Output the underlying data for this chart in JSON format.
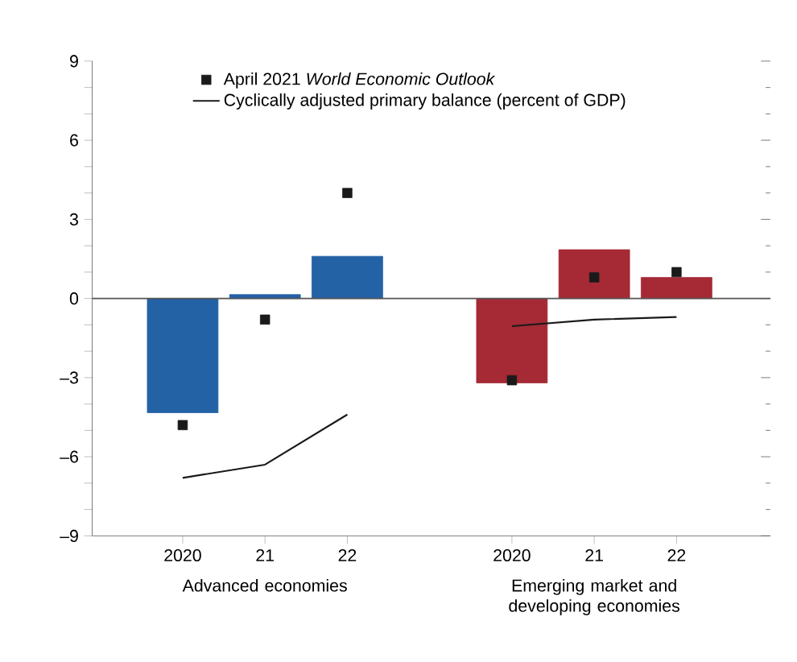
{
  "chart_data": {
    "type": "bar",
    "categories": [
      "2020",
      "21",
      "22",
      null,
      "2020",
      "21",
      "22"
    ],
    "series": [
      {
        "colors": [
          "#2462a6",
          "#2462a6",
          "#2462a6",
          "#ffffff",
          "#a52a35",
          "#a52a35",
          "#a52a35"
        ],
        "values": [
          -4.33,
          0.15,
          1.6,
          null,
          -3.2,
          1.85,
          0.8
        ]
      },
      {
        "type": "scatter",
        "name": "April 2021 *World Economic Outlook*",
        "color": "#1a1a1a",
        "marker": "square",
        "values": [
          -4.8,
          -0.8,
          4.0,
          null,
          -3.1,
          0.8,
          1.0
        ]
      },
      {
        "type": "line",
        "name": "Cyclically adjusted primary balance (percent of GDP)",
        "color": "#1a1a1a",
        "values": [
          -6.8,
          -6.3,
          -4.4,
          null,
          -1.05,
          -0.8,
          -0.7
        ]
      }
    ],
    "ylim": [
      -9,
      9
    ],
    "yticks": [
      {
        "value": -9,
        "label": "–9"
      },
      {
        "value": -8,
        "label": null
      },
      {
        "value": -7,
        "label": null
      },
      {
        "value": -6,
        "label": "–6"
      },
      {
        "value": -5,
        "label": null
      },
      {
        "value": -4,
        "label": null
      },
      {
        "value": -3,
        "label": "–3"
      },
      {
        "value": -2,
        "label": null
      },
      {
        "value": -1,
        "label": null
      },
      0,
      {
        "value": 1,
        "label": null
      },
      {
        "value": 2,
        "label": null
      },
      3,
      {
        "value": 4,
        "label": null
      },
      {
        "value": 5,
        "label": null
      },
      6,
      {
        "value": 7,
        "label": null
      },
      {
        "value": 8,
        "label": null
      },
      9
    ],
    "ref_lines": [
      {
        "axis": "y",
        "value": 0,
        "color": "#555555"
      }
    ],
    "legend": "top left",
    "annotations": [
      "Advanced economies",
      "Emerging market and developing economies"
    ]
  }
}
